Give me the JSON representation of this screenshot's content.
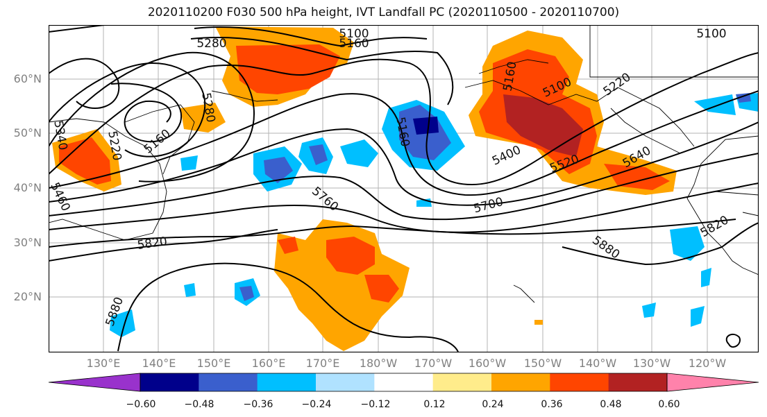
{
  "title": "2020110200 F030 500 hPa height, IVT Landfall PC (2020110500 - 2020110700)",
  "lat_labels": [
    "60°N",
    "50°N",
    "40°N",
    "30°N",
    "20°N"
  ],
  "lon_labels": [
    "130°E",
    "140°E",
    "150°E",
    "160°E",
    "170°E",
    "180°W",
    "170°W",
    "160°W",
    "150°W",
    "140°W",
    "130°W",
    "120°W"
  ],
  "contour_labels": [
    "5100",
    "5160",
    "5280",
    "5340",
    "5220",
    "5160",
    "5280",
    "5100",
    "5160",
    "5100",
    "5160",
    "5220",
    "5400",
    "5520",
    "5640",
    "5460",
    "5760",
    "5700",
    "5820",
    "5880",
    "5820",
    "5880"
  ],
  "colorbar": {
    "colors": [
      "#9932cc",
      "#00008b",
      "#3a5fcd",
      "#00bfff",
      "#b0e2ff",
      "#ffffff",
      "#ffec8b",
      "#ffa500",
      "#ff4500",
      "#b22222",
      "#ff82ab"
    ],
    "tick_labels": [
      "−0.60",
      "−0.48",
      "−0.36",
      "−0.24",
      "−0.12",
      "0.12",
      "0.24",
      "0.36",
      "0.48",
      "0.60"
    ]
  }
}
